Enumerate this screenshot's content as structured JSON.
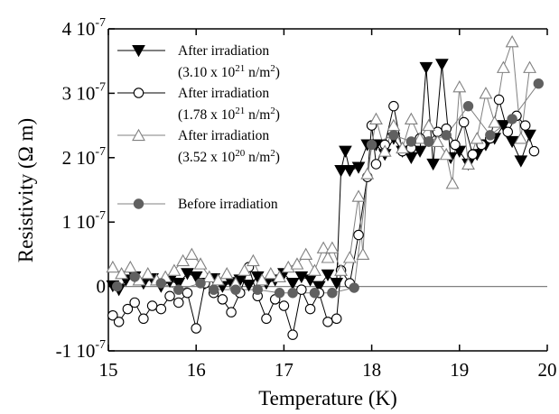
{
  "chart_data": {
    "type": "scatter",
    "xlabel": "Temperature (K)",
    "ylabel": "Resistivity (Ω m)",
    "xlim": [
      15,
      20
    ],
    "ylim": [
      -1e-07,
      4e-07
    ],
    "grid": false,
    "legend_position": "top-left",
    "x_ticks": [
      {
        "value": 15,
        "label": "15"
      },
      {
        "value": 16,
        "label": "16"
      },
      {
        "value": 17,
        "label": "17"
      },
      {
        "value": 18,
        "label": "18"
      },
      {
        "value": 19,
        "label": "19"
      },
      {
        "value": 20,
        "label": "20"
      }
    ],
    "y_ticks": [
      {
        "value": -1e-07,
        "mant": "-1 10",
        "exp": "-7"
      },
      {
        "value": 0,
        "mant": "0",
        "exp": ""
      },
      {
        "value": 1e-07,
        "mant": "1 10",
        "exp": "-7"
      },
      {
        "value": 2e-07,
        "mant": "2 10",
        "exp": "-7"
      },
      {
        "value": 3e-07,
        "mant": "3 10",
        "exp": "-7"
      },
      {
        "value": 4e-07,
        "mant": "4 10",
        "exp": "-7"
      }
    ],
    "series": [
      {
        "label_line1": "After irradiation",
        "label_line2_pre": "(3.10 x 10",
        "label_line2_sup": "21",
        "label_line2_post": " n/m",
        "label_line2_sup2": "2",
        "label_line2_end": ")",
        "marker": "triangle-down-filled",
        "color": "#000000",
        "points": [
          [
            15.05,
            1e-09
          ],
          [
            15.12,
            -5e-09
          ],
          [
            15.2,
            1e-08
          ],
          [
            15.3,
            1.5e-08
          ],
          [
            15.4,
            5e-09
          ],
          [
            15.5,
            1.2e-08
          ],
          [
            15.6,
            0.0
          ],
          [
            15.7,
            8e-09
          ],
          [
            15.8,
            5e-09
          ],
          [
            15.9,
            2e-08
          ],
          [
            16.0,
            1.5e-08
          ],
          [
            16.1,
            5e-09
          ],
          [
            16.2,
            1.2e-08
          ],
          [
            16.3,
            0.0
          ],
          [
            16.4,
            6e-09
          ],
          [
            16.5,
            1e-08
          ],
          [
            16.6,
            2e-09
          ],
          [
            16.7,
            1.5e-08
          ],
          [
            16.8,
            5e-09
          ],
          [
            16.9,
            1e-08
          ],
          [
            17.0,
            2e-08
          ],
          [
            17.1,
            5e-09
          ],
          [
            17.2,
            1.5e-08
          ],
          [
            17.3,
            1e-08
          ],
          [
            17.4,
            0.0
          ],
          [
            17.5,
            1.8e-08
          ],
          [
            17.6,
            5e-09
          ],
          [
            17.65,
            1.8e-07
          ],
          [
            17.7,
            2.1e-07
          ],
          [
            17.75,
            1.8e-07
          ],
          [
            17.85,
            1.85e-07
          ],
          [
            17.95,
            2.2e-07
          ],
          [
            18.05,
            2.2e-07
          ],
          [
            18.15,
            2.05e-07
          ],
          [
            18.25,
            2.3e-07
          ],
          [
            18.35,
            2.1e-07
          ],
          [
            18.45,
            2e-07
          ],
          [
            18.55,
            2.1e-07
          ],
          [
            18.62,
            3.4e-07
          ],
          [
            18.7,
            1.9e-07
          ],
          [
            18.8,
            3.45e-07
          ],
          [
            18.9,
            2e-07
          ],
          [
            19.0,
            2.1e-07
          ],
          [
            19.1,
            1.9e-07
          ],
          [
            19.2,
            2.05e-07
          ],
          [
            19.3,
            2.2e-07
          ],
          [
            19.4,
            2.3e-07
          ],
          [
            19.5,
            2.5e-07
          ],
          [
            19.6,
            2.25e-07
          ],
          [
            19.7,
            1.95e-07
          ],
          [
            19.8,
            2.35e-07
          ]
        ]
      },
      {
        "label_line1": "After irradiation",
        "label_line2_pre": "(1.78 x 10",
        "label_line2_sup": "21",
        "label_line2_post": " n/m",
        "label_line2_sup2": "2",
        "label_line2_end": ")",
        "marker": "circle-open",
        "color": "#000000",
        "points": [
          [
            15.05,
            -4.5e-08
          ],
          [
            15.12,
            -5.5e-08
          ],
          [
            15.22,
            -3.5e-08
          ],
          [
            15.3,
            -2.5e-08
          ],
          [
            15.4,
            -5e-08
          ],
          [
            15.5,
            -3e-08
          ],
          [
            15.6,
            -3.5e-08
          ],
          [
            15.7,
            -1.5e-08
          ],
          [
            15.8,
            -2.5e-08
          ],
          [
            15.9,
            -1e-08
          ],
          [
            16.0,
            -6.5e-08
          ],
          [
            16.1,
            5e-09
          ],
          [
            16.2,
            -1e-08
          ],
          [
            16.3,
            -2e-08
          ],
          [
            16.4,
            -4e-08
          ],
          [
            16.5,
            -1e-08
          ],
          [
            16.6,
            3e-08
          ],
          [
            16.7,
            -1.5e-08
          ],
          [
            16.8,
            -5e-08
          ],
          [
            16.9,
            -2e-08
          ],
          [
            17.0,
            -3e-08
          ],
          [
            17.1,
            -7.5e-08
          ],
          [
            17.2,
            -5e-09
          ],
          [
            17.3,
            -3.5e-08
          ],
          [
            17.4,
            -1e-08
          ],
          [
            17.5,
            -5.5e-08
          ],
          [
            17.6,
            -5e-08
          ],
          [
            17.65,
            2.5e-08
          ],
          [
            17.75,
            5e-09
          ],
          [
            17.85,
            8e-08
          ],
          [
            17.95,
            1.7e-07
          ],
          [
            18.0,
            2.5e-07
          ],
          [
            18.05,
            1.9e-07
          ],
          [
            18.15,
            2.2e-07
          ],
          [
            18.25,
            2.8e-07
          ],
          [
            18.35,
            2.1e-07
          ],
          [
            18.45,
            2.15e-07
          ],
          [
            18.55,
            2.3e-07
          ],
          [
            18.65,
            2.25e-07
          ],
          [
            18.75,
            2.4e-07
          ],
          [
            18.85,
            2.45e-07
          ],
          [
            18.95,
            2.2e-07
          ],
          [
            19.05,
            2.55e-07
          ],
          [
            19.15,
            2.05e-07
          ],
          [
            19.25,
            2.2e-07
          ],
          [
            19.35,
            2.3e-07
          ],
          [
            19.45,
            2.9e-07
          ],
          [
            19.55,
            2.4e-07
          ],
          [
            19.65,
            2.65e-07
          ],
          [
            19.75,
            2.5e-07
          ],
          [
            19.85,
            2.1e-07
          ]
        ]
      },
      {
        "label_line1": "After irradiation",
        "label_line2_pre": "(3.52 x 10",
        "label_line2_sup": "20",
        "label_line2_post": " n/m",
        "label_line2_sup2": "2",
        "label_line2_end": ")",
        "marker": "triangle-up-open",
        "color": "#808080",
        "points": [
          [
            15.05,
            3e-08
          ],
          [
            15.15,
            2e-08
          ],
          [
            15.25,
            3e-08
          ],
          [
            15.35,
            1e-08
          ],
          [
            15.45,
            2e-08
          ],
          [
            15.55,
            1e-08
          ],
          [
            15.65,
            1.5e-08
          ],
          [
            15.75,
            2.5e-08
          ],
          [
            15.85,
            4e-08
          ],
          [
            15.95,
            5e-08
          ],
          [
            16.05,
            3.5e-08
          ],
          [
            16.15,
            1.5e-08
          ],
          [
            16.25,
            1e-08
          ],
          [
            16.35,
            2e-08
          ],
          [
            16.45,
            5e-09
          ],
          [
            16.55,
            2.5e-08
          ],
          [
            16.65,
            4e-08
          ],
          [
            16.75,
            1e-08
          ],
          [
            16.85,
            2e-08
          ],
          [
            16.95,
            1.5e-08
          ],
          [
            17.05,
            3e-08
          ],
          [
            17.15,
            3.5e-08
          ],
          [
            17.25,
            5e-08
          ],
          [
            17.35,
            2.5e-08
          ],
          [
            17.45,
            6e-08
          ],
          [
            17.5,
            4.5e-08
          ],
          [
            17.55,
            6e-08
          ],
          [
            17.65,
            2.5e-08
          ],
          [
            17.75,
            4.5e-08
          ],
          [
            17.85,
            1.4e-07
          ],
          [
            17.9,
            5e-08
          ],
          [
            17.95,
            1.75e-07
          ],
          [
            18.05,
            2.6e-07
          ],
          [
            18.15,
            2.1e-07
          ],
          [
            18.25,
            2.5e-07
          ],
          [
            18.35,
            2.15e-07
          ],
          [
            18.45,
            2.6e-07
          ],
          [
            18.55,
            2.3e-07
          ],
          [
            18.65,
            2.5e-07
          ],
          [
            18.75,
            2.25e-07
          ],
          [
            18.85,
            2.05e-07
          ],
          [
            18.92,
            1.6e-07
          ],
          [
            19.0,
            3.1e-07
          ],
          [
            19.1,
            1.9e-07
          ],
          [
            19.2,
            2.3e-07
          ],
          [
            19.3,
            3e-07
          ],
          [
            19.4,
            2.55e-07
          ],
          [
            19.5,
            3.4e-07
          ],
          [
            19.6,
            3.8e-07
          ],
          [
            19.7,
            2.3e-07
          ],
          [
            19.8,
            3.4e-07
          ]
        ]
      },
      {
        "label_line1": "Before irradiation",
        "label_line2_pre": "",
        "label_line2_sup": "",
        "label_line2_post": "",
        "label_line2_sup2": "",
        "label_line2_end": "",
        "marker": "circle-filled",
        "color": "#606060",
        "points": [
          [
            15.1,
            0.0
          ],
          [
            15.3,
            1.5e-08
          ],
          [
            15.6,
            5e-09
          ],
          [
            15.8,
            -5e-09
          ],
          [
            16.05,
            5e-09
          ],
          [
            16.2,
            -5e-09
          ],
          [
            16.45,
            -5e-09
          ],
          [
            16.7,
            -5e-09
          ],
          [
            16.95,
            -1e-08
          ],
          [
            17.1,
            -1e-08
          ],
          [
            17.35,
            -1e-08
          ],
          [
            17.55,
            -1e-08
          ],
          [
            17.8,
            -2e-09
          ],
          [
            18.0,
            2.2e-07
          ],
          [
            18.25,
            2.35e-07
          ],
          [
            18.45,
            2.25e-07
          ],
          [
            18.65,
            2.25e-07
          ],
          [
            18.85,
            2.35e-07
          ],
          [
            19.1,
            2.8e-07
          ],
          [
            19.35,
            2.35e-07
          ],
          [
            19.6,
            2.6e-07
          ],
          [
            19.9,
            3.15e-07
          ]
        ]
      }
    ]
  }
}
